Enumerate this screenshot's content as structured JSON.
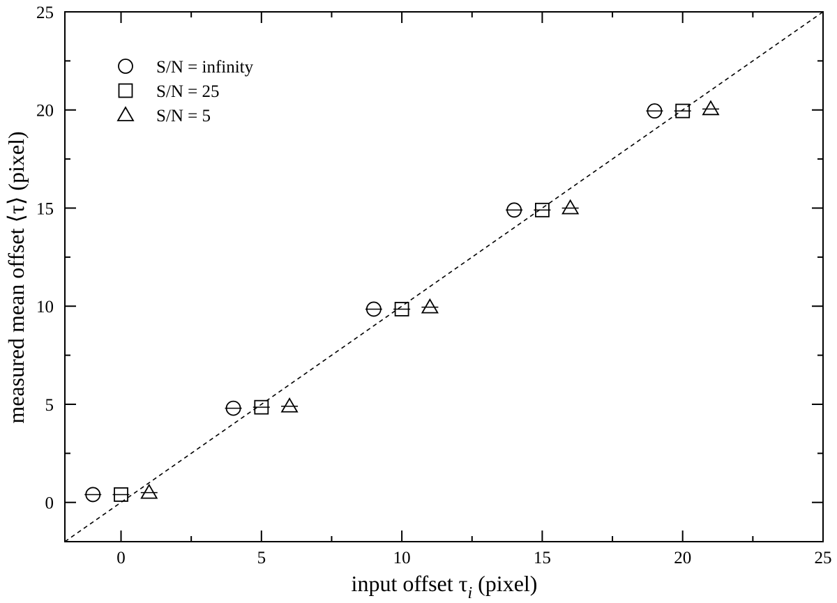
{
  "chart_data": {
    "type": "scatter",
    "xlabel": {
      "main": "input offset τ",
      "subscript": "i",
      "suffix": " (pixel)"
    },
    "ylabel": "measured mean offset ⟨τ⟩   (pixel)",
    "xlim": [
      -2,
      25
    ],
    "ylim": [
      -2,
      25
    ],
    "x_ticks": [
      0,
      5,
      10,
      15,
      20,
      25
    ],
    "y_ticks": [
      0,
      5,
      10,
      15,
      20,
      25
    ],
    "grid": false,
    "legend_position": "top-left",
    "reference_line": {
      "style": "dashed",
      "slope": 1,
      "intercept": 0
    },
    "series": [
      {
        "name": "S/N = infinity",
        "marker": "circle",
        "points": [
          {
            "x": -1,
            "y": 0.4
          },
          {
            "x": 4,
            "y": 4.8
          },
          {
            "x": 9,
            "y": 9.85
          },
          {
            "x": 14,
            "y": 14.9
          },
          {
            "x": 19,
            "y": 19.95
          }
        ]
      },
      {
        "name": "S/N = 25",
        "marker": "square",
        "points": [
          {
            "x": 0,
            "y": 0.4
          },
          {
            "x": 5,
            "y": 4.85
          },
          {
            "x": 10,
            "y": 9.85
          },
          {
            "x": 15,
            "y": 14.9
          },
          {
            "x": 20,
            "y": 19.95
          }
        ]
      },
      {
        "name": "S/N = 5",
        "marker": "triangle",
        "points": [
          {
            "x": 1,
            "y": 0.5
          },
          {
            "x": 6,
            "y": 4.9
          },
          {
            "x": 11,
            "y": 9.95
          },
          {
            "x": 16,
            "y": 15.0
          },
          {
            "x": 21,
            "y": 20.05
          }
        ]
      }
    ]
  }
}
